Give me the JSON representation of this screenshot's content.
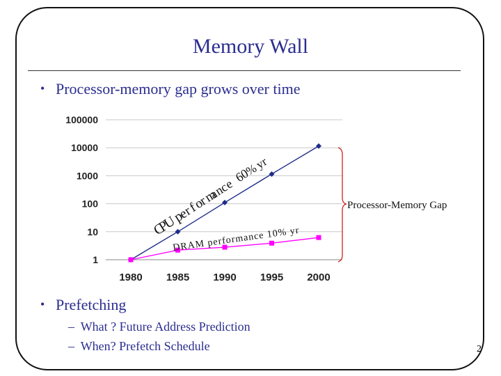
{
  "slide": {
    "title": "Memory Wall",
    "bullet1": "Processor-memory gap grows over time",
    "bullet2": "Prefetching",
    "sub1": "What ? Future Address Prediction",
    "sub2": "When?  Prefetch Schedule",
    "page_number": "2",
    "dash": "–",
    "bullet_char": "•"
  },
  "colors": {
    "title": "#2b2e8f",
    "cpu_series": "#1f2d8a",
    "dram_series": "#ff00ff",
    "brace": "#cc2222"
  },
  "chart_data": {
    "type": "line",
    "scale": "log",
    "ylim": [
      1,
      100000
    ],
    "grid": true,
    "yticks": [
      "1",
      "10",
      "100",
      "1000",
      "10000",
      "100000"
    ],
    "categories": [
      "1980",
      "1985",
      "1990",
      "1995",
      "2000"
    ],
    "series": [
      {
        "values": [
          1,
          10,
          110,
          1150,
          11500
        ]
      },
      {
        "values": [
          1,
          2.2,
          2.8,
          3.9,
          6.2
        ]
      }
    ],
    "annotations": {
      "cpu_chars": [
        "C",
        "P",
        "U",
        " ",
        "p",
        "e",
        "r",
        "f",
        "o",
        "r",
        "m",
        "a",
        "n",
        "c",
        "e",
        " ",
        "6",
        "0",
        "%",
        " ",
        "y",
        "r"
      ],
      "dram_label": "DRAM performance 10% yr",
      "gap_label": "Processor-Memory Gap"
    }
  }
}
